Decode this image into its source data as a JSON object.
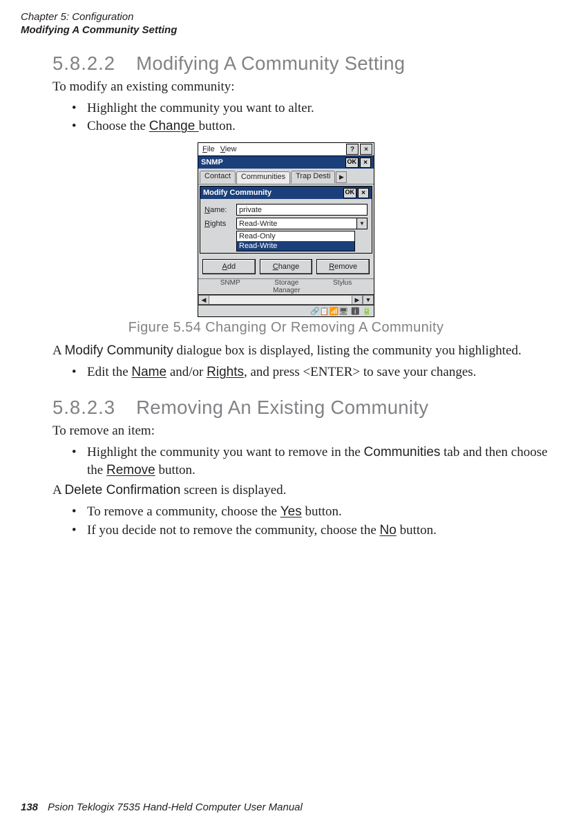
{
  "runningHead": {
    "line1": "Chapter 5: Configuration",
    "line2": "Modifying A Community Setting"
  },
  "section1": {
    "number": "5.8.2.2",
    "title": "Modifying A Community Setting",
    "intro": "To modify an existing community:",
    "bullet1": "Highlight the community you want to alter.",
    "bullet2_a": "Choose the ",
    "bullet2_btn": "Change ",
    "bullet2_b": "button."
  },
  "figure": {
    "caption": "Figure 5.54 Changing Or Removing A Community",
    "menubar": {
      "file_u": "F",
      "file": "ile",
      "view_u": "V",
      "view": "iew",
      "help": "?",
      "close": "×"
    },
    "snmpTitle": "SNMP",
    "ok": "OK",
    "close": "×",
    "tabs": {
      "contact": "Contact",
      "communities": "Communities",
      "trap": "Trap Desti",
      "scroll": "▶"
    },
    "modifyTitle": "Modify Community",
    "nameLabel_u": "N",
    "nameLabel": "ame:",
    "nameValue": "private",
    "rightsLabel_u": "R",
    "rightsLabel": "ights",
    "rightsValue": "Read-Write",
    "dropArrow": "▼",
    "opt1": "Read-Only",
    "opt2": "Read-Write",
    "btnAdd_u": "A",
    "btnAdd": "dd",
    "btnChange_u": "C",
    "btnChange": "hange",
    "btnRemove_u": "R",
    "btnRemove": "emove",
    "iconSNMP": "SNMP",
    "iconStorage1": "Storage",
    "iconStorage2": "Manager",
    "iconStylus": "Stylus",
    "leftArr": "◀",
    "rightArr": "▶",
    "downArr": "▼",
    "trayIcons": "🔗📋📶🖥 ℹ 🔋"
  },
  "afterFigure": {
    "p1_a": "A ",
    "p1_b": "Modify Community",
    "p1_c": " dialogue box is displayed, listing the community you highlighted.",
    "bullet_a": "Edit the ",
    "bullet_name": "Name",
    "bullet_b": " and/or ",
    "bullet_rights": "Rights",
    "bullet_c": ", and press <ENTER> to save your changes."
  },
  "section2": {
    "number": "5.8.2.3",
    "title": "Removing An Existing Community",
    "intro": "To remove an item:",
    "b1_a": "Highlight the community you want to remove in the ",
    "b1_b": "Communities",
    "b1_c": " tab and then choose the ",
    "b1_d": "Remove",
    "b1_e": " button.",
    "p2_a": "A ",
    "p2_b": "Delete Confirmation",
    "p2_c": " screen is displayed.",
    "b2_a": "To remove a community, choose the ",
    "b2_b": "Yes",
    "b2_c": " button.",
    "b3_a": "If you decide not to remove the community, choose the ",
    "b3_b": "No",
    "b3_c": " button."
  },
  "footer": {
    "pageNum": "138",
    "text": "Psion Teklogix 7535 Hand-Held Computer User Manual"
  }
}
